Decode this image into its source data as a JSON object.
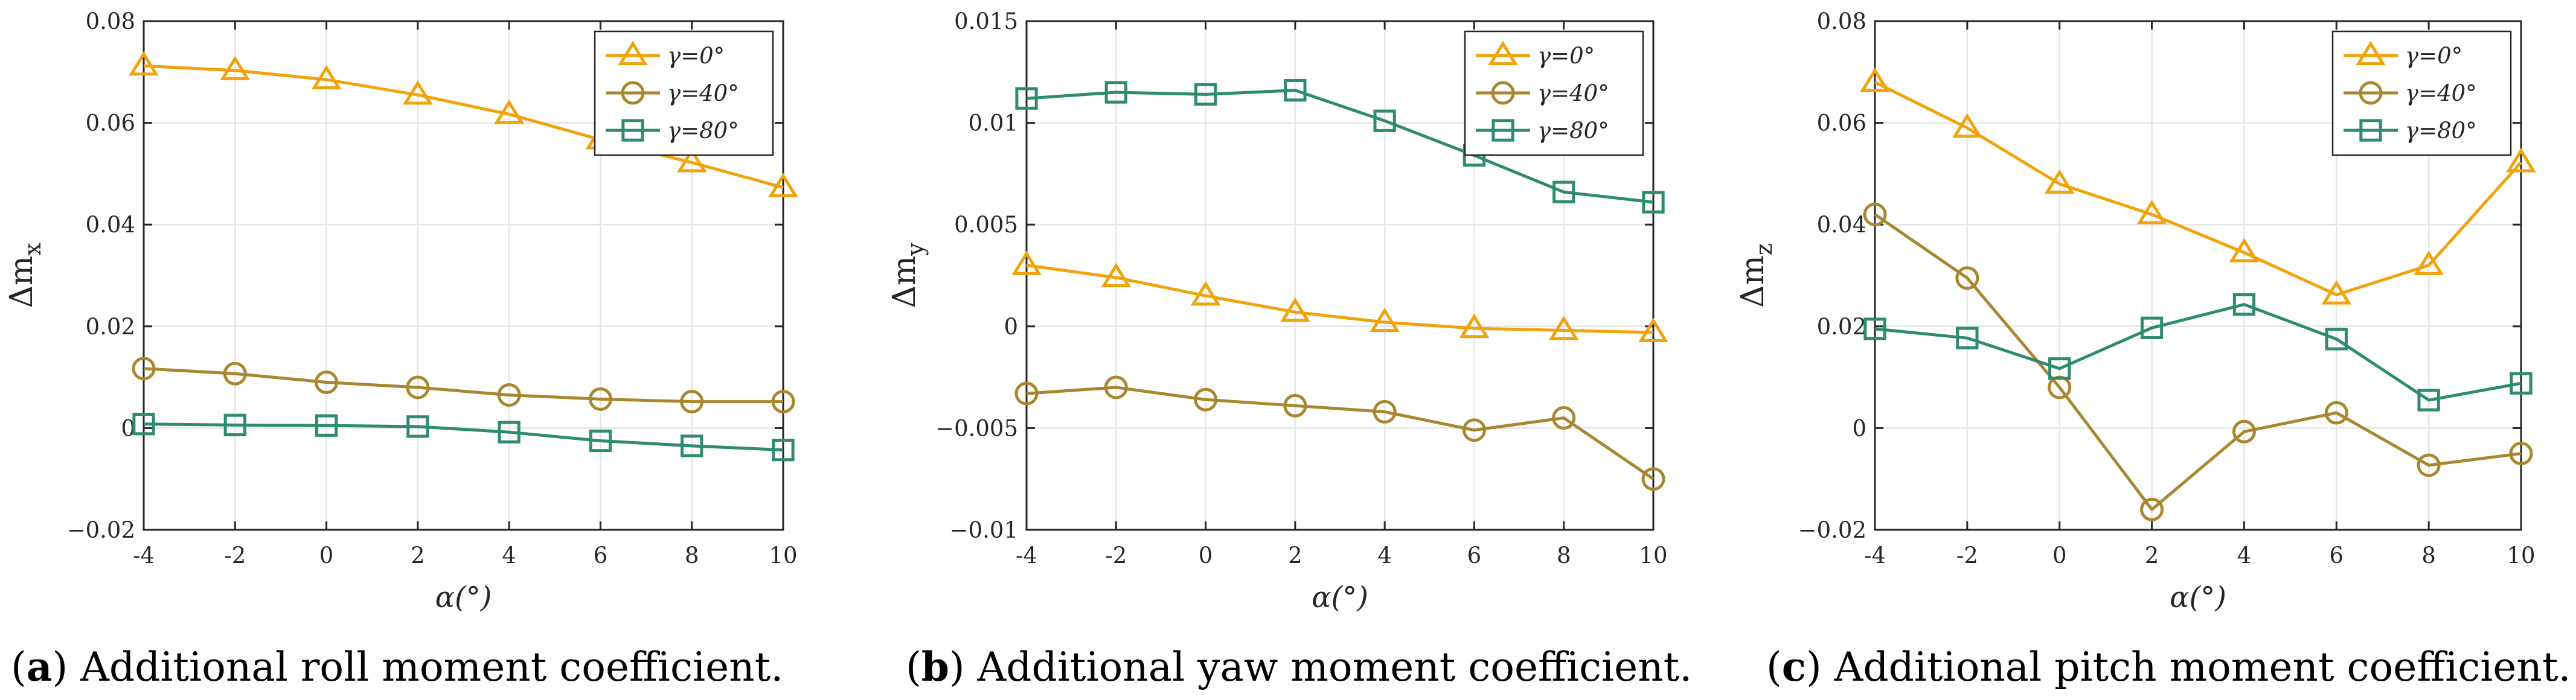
{
  "chart_data": [
    {
      "id": "a",
      "type": "line",
      "caption_label": "a",
      "caption_text": ") Additional roll moment coefficient.",
      "xlabel": "α(°)",
      "ylabel_main": "Δm",
      "ylabel_sub": "x",
      "x": [
        -4,
        -2,
        0,
        2,
        4,
        6,
        8,
        10
      ],
      "xlim": [
        -4,
        10
      ],
      "ylim": [
        -0.02,
        0.08
      ],
      "xticks": [
        -4,
        -2,
        0,
        2,
        4,
        6,
        8,
        10
      ],
      "xtick_labels": [
        "-4",
        "-2",
        "0",
        "2",
        "4",
        "6",
        "8",
        "10"
      ],
      "yticks": [
        -0.02,
        0,
        0.02,
        0.04,
        0.06,
        0.08
      ],
      "ytick_labels": [
        "−0.02",
        "0",
        "0.02",
        "0.04",
        "0.06",
        "0.08"
      ],
      "grid": true,
      "legend_position": "top-right",
      "series": [
        {
          "name": "γ=0°",
          "marker": "triangle",
          "color": "#F0A30A",
          "values": [
            0.0712,
            0.0703,
            0.0685,
            0.0655,
            0.0617,
            0.0567,
            0.0522,
            0.0473
          ]
        },
        {
          "name": "γ=40°",
          "marker": "circle",
          "color": "#A8872E",
          "values": [
            0.0117,
            0.0107,
            0.009,
            0.008,
            0.0065,
            0.0057,
            0.0052,
            0.0052
          ]
        },
        {
          "name": "γ=80°",
          "marker": "square",
          "color": "#2E8B72",
          "values": [
            0.0008,
            0.0006,
            0.0005,
            0.0003,
            -0.0008,
            -0.0025,
            -0.0035,
            -0.0043
          ]
        }
      ]
    },
    {
      "id": "b",
      "type": "line",
      "caption_label": "b",
      "caption_text": ") Additional yaw moment coefficient.",
      "xlabel": "α(°)",
      "ylabel_main": "Δm",
      "ylabel_sub": "y",
      "x": [
        -4,
        -2,
        0,
        2,
        4,
        6,
        8,
        10
      ],
      "xlim": [
        -4,
        10
      ],
      "ylim": [
        -0.01,
        0.015
      ],
      "xticks": [
        -4,
        -2,
        0,
        2,
        4,
        6,
        8,
        10
      ],
      "xtick_labels": [
        "-4",
        "-2",
        "0",
        "2",
        "4",
        "6",
        "8",
        "10"
      ],
      "yticks": [
        -0.01,
        -0.005,
        0,
        0.005,
        0.01,
        0.015
      ],
      "ytick_labels": [
        "−0.01",
        "−0.005",
        "0",
        "0.005",
        "0.01",
        "0.015"
      ],
      "grid": true,
      "legend_position": "top-right",
      "series": [
        {
          "name": "γ=0°",
          "marker": "triangle",
          "color": "#F0A30A",
          "values": [
            0.003,
            0.0024,
            0.0015,
            0.0007,
            0.0002,
            -0.0001,
            -0.0002,
            -0.0003
          ]
        },
        {
          "name": "γ=40°",
          "marker": "circle",
          "color": "#A8872E",
          "values": [
            -0.0033,
            -0.003,
            -0.0036,
            -0.0039,
            -0.0042,
            -0.0051,
            -0.0045,
            -0.0075
          ]
        },
        {
          "name": "γ=80°",
          "marker": "square",
          "color": "#2E8B72",
          "values": [
            0.0112,
            0.0115,
            0.0114,
            0.0116,
            0.0101,
            0.0084,
            0.0066,
            0.0061
          ]
        }
      ]
    },
    {
      "id": "c",
      "type": "line",
      "caption_label": "c",
      "caption_text": ") Additional pitch moment coefficient.",
      "xlabel": "α(°)",
      "ylabel_main": "Δm",
      "ylabel_sub": "z",
      "x": [
        -4,
        -2,
        0,
        2,
        4,
        6,
        8,
        10
      ],
      "xlim": [
        -4,
        10
      ],
      "ylim": [
        -0.02,
        0.08
      ],
      "xticks": [
        -4,
        -2,
        0,
        2,
        4,
        6,
        8,
        10
      ],
      "xtick_labels": [
        "-4",
        "-2",
        "0",
        "2",
        "4",
        "6",
        "8",
        "10"
      ],
      "yticks": [
        -0.02,
        0,
        0.02,
        0.04,
        0.06,
        0.08
      ],
      "ytick_labels": [
        "−0.02",
        "0",
        "0.02",
        "0.04",
        "0.06",
        "0.08"
      ],
      "grid": true,
      "legend_position": "top-right",
      "series": [
        {
          "name": "γ=0°",
          "marker": "triangle",
          "color": "#F0A30A",
          "values": [
            0.068,
            0.059,
            0.048,
            0.042,
            0.0345,
            0.0262,
            0.032,
            0.0522
          ]
        },
        {
          "name": "γ=40°",
          "marker": "circle",
          "color": "#A8872E",
          "values": [
            0.042,
            0.0295,
            0.008,
            -0.016,
            -0.0007,
            0.003,
            -0.0073,
            -0.005
          ]
        },
        {
          "name": "γ=80°",
          "marker": "square",
          "color": "#2E8B72",
          "values": [
            0.0195,
            0.0177,
            0.0117,
            0.0197,
            0.0243,
            0.0175,
            0.0055,
            0.0088
          ]
        }
      ]
    }
  ]
}
